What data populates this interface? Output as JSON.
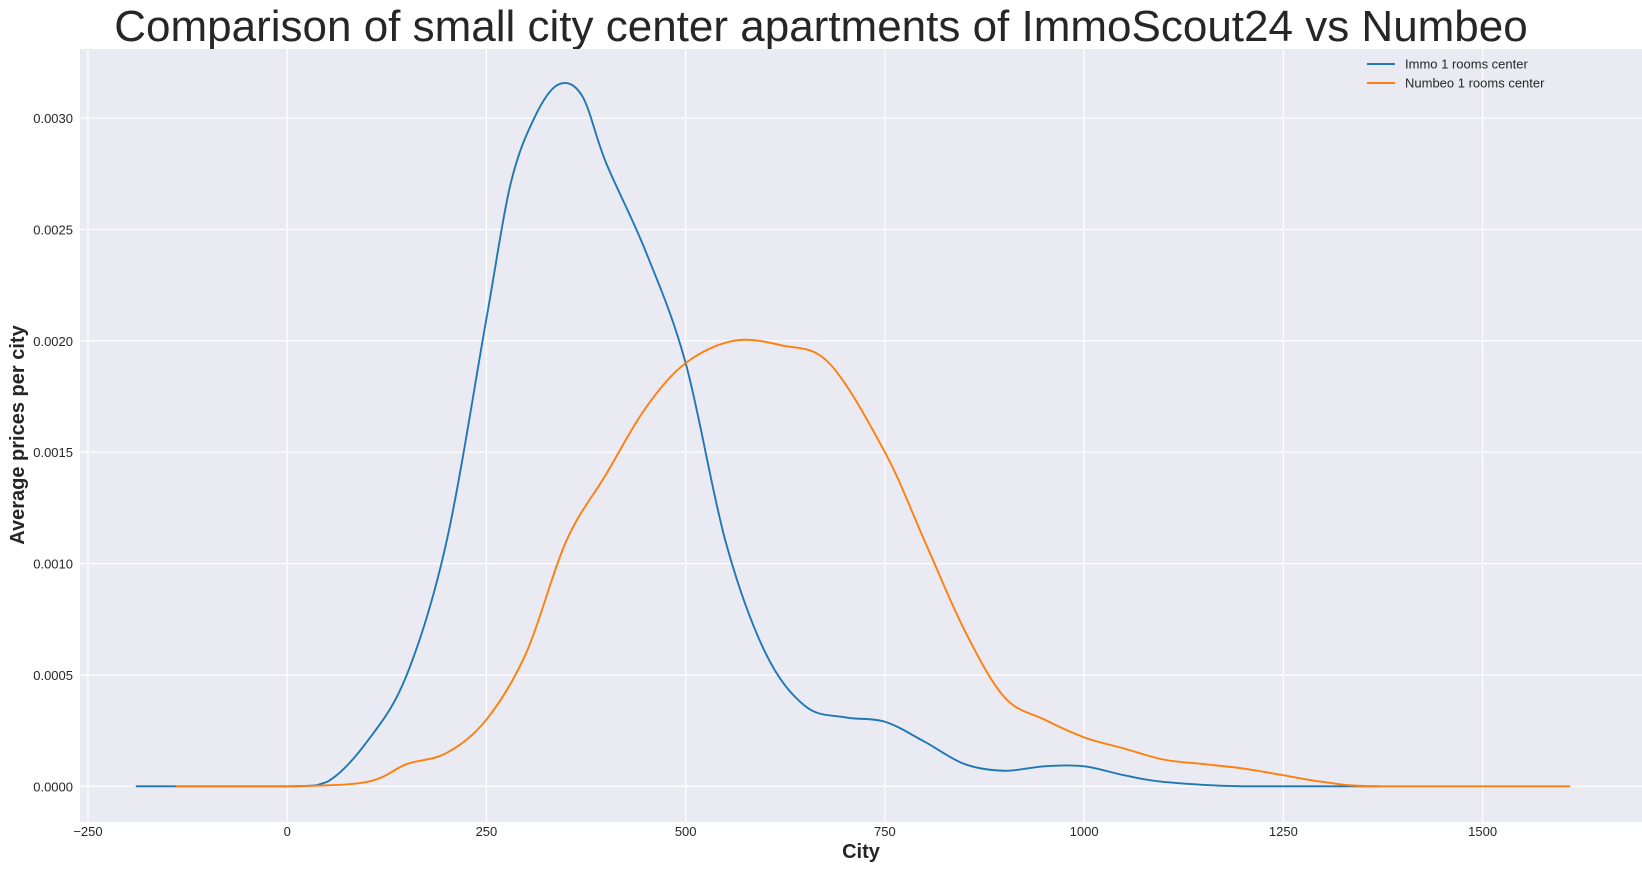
{
  "chart_data": {
    "type": "line",
    "title": "Comparison of small city center apartments of ImmoScout24 vs Numbeo",
    "xlabel": "City",
    "ylabel": "Average prices per city",
    "xlim": [
      -260,
      1700
    ],
    "ylim": [
      -0.00016,
      0.00331
    ],
    "xticks": [
      -250,
      0,
      250,
      500,
      750,
      1000,
      1250,
      1500
    ],
    "xtick_labels": [
      "−250",
      "0",
      "250",
      "500",
      "750",
      "1000",
      "1250",
      "1500"
    ],
    "yticks": [
      0.0,
      0.0005,
      0.001,
      0.0015,
      0.002,
      0.0025,
      0.003
    ],
    "ytick_labels": [
      "0.0000",
      "0.0005",
      "0.0010",
      "0.0015",
      "0.0020",
      "0.0025",
      "0.0030"
    ],
    "grid": true,
    "background": "#eaeaf2",
    "legend_position": "top-right",
    "series": [
      {
        "name": "Immo 1 rooms center",
        "color": "#1f77b4",
        "points": [
          [
            -190,
            0.0
          ],
          [
            0,
            0.0
          ],
          [
            50,
            2e-05
          ],
          [
            100,
            0.0002
          ],
          [
            150,
            0.0005
          ],
          [
            200,
            0.0011
          ],
          [
            250,
            0.0021
          ],
          [
            280,
            0.0027
          ],
          [
            310,
            0.003
          ],
          [
            340,
            0.00315
          ],
          [
            370,
            0.0031
          ],
          [
            400,
            0.0028
          ],
          [
            450,
            0.0024
          ],
          [
            500,
            0.0019
          ],
          [
            550,
            0.0011
          ],
          [
            600,
            0.0006
          ],
          [
            650,
            0.00036
          ],
          [
            700,
            0.00031
          ],
          [
            750,
            0.00029
          ],
          [
            800,
            0.0002
          ],
          [
            850,
            0.0001
          ],
          [
            900,
            7e-05
          ],
          [
            950,
            9e-05
          ],
          [
            1000,
            9e-05
          ],
          [
            1050,
            5e-05
          ],
          [
            1100,
            2e-05
          ],
          [
            1200,
            0.0
          ],
          [
            1370,
            0.0
          ]
        ]
      },
      {
        "name": "Numbeo 1 rooms center",
        "color": "#ff7f0e",
        "points": [
          [
            -140,
            0.0
          ],
          [
            0,
            0.0
          ],
          [
            100,
            2e-05
          ],
          [
            150,
            0.0001
          ],
          [
            200,
            0.00015
          ],
          [
            250,
            0.0003
          ],
          [
            300,
            0.0006
          ],
          [
            350,
            0.0011
          ],
          [
            400,
            0.0014
          ],
          [
            450,
            0.0017
          ],
          [
            500,
            0.0019
          ],
          [
            560,
            0.002
          ],
          [
            620,
            0.00198
          ],
          [
            680,
            0.0019
          ],
          [
            750,
            0.0015
          ],
          [
            800,
            0.0011
          ],
          [
            850,
            0.0007
          ],
          [
            900,
            0.0004
          ],
          [
            950,
            0.0003
          ],
          [
            1000,
            0.00022
          ],
          [
            1050,
            0.00017
          ],
          [
            1100,
            0.00012
          ],
          [
            1150,
            0.0001
          ],
          [
            1200,
            8e-05
          ],
          [
            1250,
            5e-05
          ],
          [
            1300,
            2e-05
          ],
          [
            1370,
            0.0
          ],
          [
            1610,
            0.0
          ]
        ]
      }
    ]
  }
}
